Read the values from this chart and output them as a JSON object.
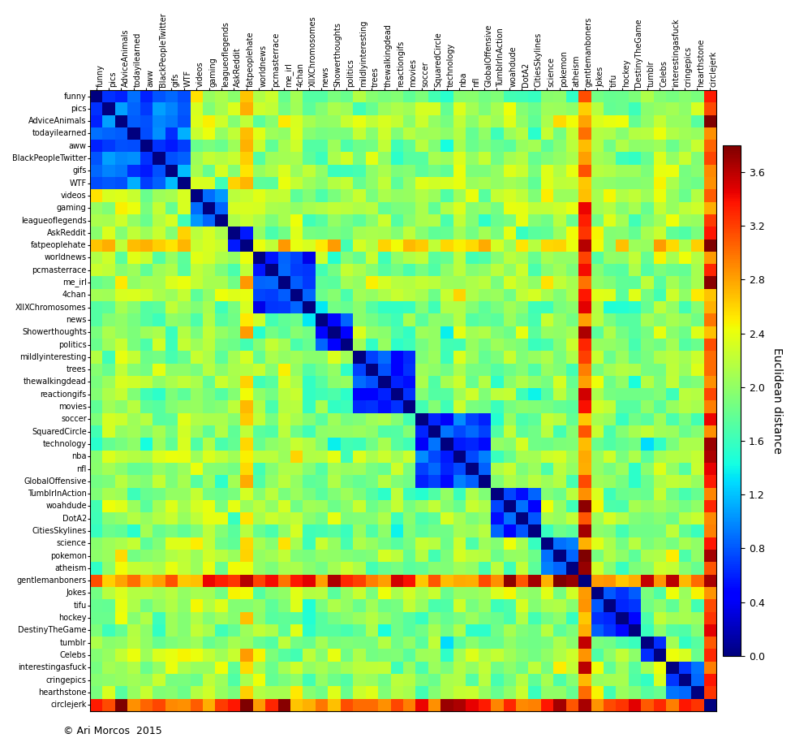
{
  "labels": [
    "funny",
    "pics",
    "AdviceAnimals",
    "todayilearned",
    "aww",
    "BlackPeopleTwitter",
    "gifs",
    "WTF",
    "videos",
    "gaming",
    "leagueoflegends",
    "AskReddit",
    "fatpeoplehate",
    "worldnews",
    "pcmasterrace",
    "me_irl",
    "4chan",
    "XllXChromosomes",
    "news",
    "Showerthoughts",
    "politics",
    "mildlyinteresting",
    "trees",
    "thewalkingdead",
    "reactiongifs",
    "movies",
    "soccer",
    "SquaredCircle",
    "technology",
    "nba",
    "nfl",
    "GlobalOffensive",
    "TumblrInAction",
    "woahdude",
    "DotA2",
    "CitiesSkylines",
    "science",
    "pokemon",
    "atheism",
    "gentlemanboners",
    "Jokes",
    "tifu",
    "hockey",
    "DestinyTheGame",
    "tumblr",
    "Celebs",
    "interestingasfuck",
    "cringepics",
    "hearthstone",
    "circlejerk"
  ],
  "vmin": 0.0,
  "vmax": 3.8,
  "colorbar_ticks": [
    0.0,
    0.4,
    0.8,
    1.2,
    1.6,
    2.0,
    2.4,
    2.8,
    3.2,
    3.6
  ],
  "colorbar_label": "Euclidean distance",
  "footnote": "© Ari Morcos  2015",
  "cmap": "jet"
}
